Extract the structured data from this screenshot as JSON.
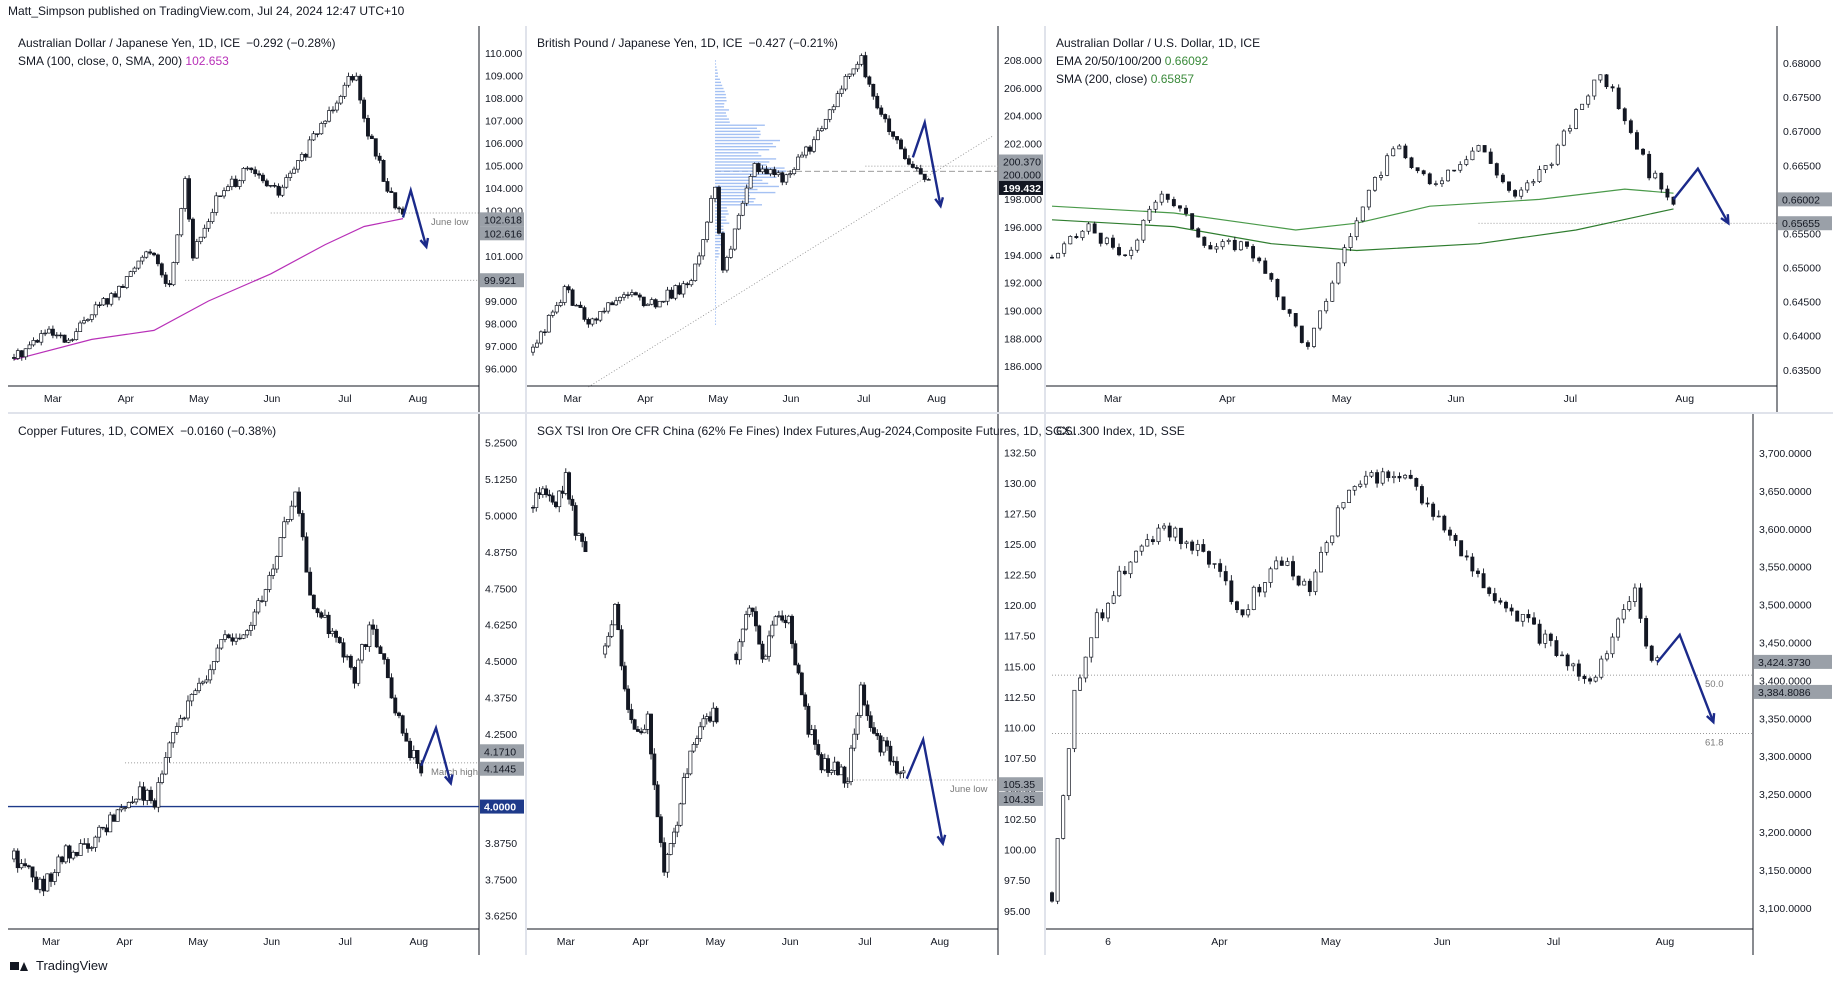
{
  "header": {
    "publisher": "Matt_Simpson published on TradingView.com, Jul 24, 2024 12:47 UTC+10"
  },
  "footer": {
    "brand": "TradingView"
  },
  "colors": {
    "up_down": "#131722",
    "arrow": "#1b2a8a",
    "sma_magenta": "#b830b8",
    "ema_green": "#4a9a4a",
    "level_line": "#1e3a8a",
    "hline": "#7a7a7a"
  },
  "chart_data": [
    {
      "type": "candlestick",
      "title": "Australian Dollar / Japanese Yen, 1D, ICE",
      "change": "−0.292 (−0.28%)",
      "indicator": "SMA (100, close, 0, SMA, 200)",
      "indicator_value": "102.653",
      "ylim": [
        95.5,
        110.3
      ],
      "yticks": [
        "110.000",
        "109.000",
        "108.000",
        "107.000",
        "106.000",
        "105.000",
        "104.000",
        "103.000",
        "102.000",
        "101.000",
        "100.000",
        "99.000",
        "98.000",
        "97.000",
        "96.000"
      ],
      "xticks": [
        "Mar",
        "Apr",
        "May",
        "Jun",
        "Jul",
        "Aug"
      ],
      "path": [
        [
          0,
          96.5
        ],
        [
          8,
          97.6
        ],
        [
          14,
          97.1
        ],
        [
          20,
          98.6
        ],
        [
          27,
          99.4
        ],
        [
          34,
          101.4
        ],
        [
          40,
          99.6
        ],
        [
          44,
          104.5
        ],
        [
          46,
          101.0
        ],
        [
          52,
          103.5
        ],
        [
          60,
          104.8
        ],
        [
          68,
          103.8
        ],
        [
          75,
          105.6
        ],
        [
          86,
          108.9
        ],
        [
          88,
          109.2
        ],
        [
          90,
          107.0
        ],
        [
          96,
          104.0
        ],
        [
          100,
          102.7
        ]
      ],
      "total_days": 118,
      "sma": [
        [
          0,
          96.4
        ],
        [
          20,
          97.3
        ],
        [
          36,
          97.7
        ],
        [
          50,
          99.0
        ],
        [
          66,
          100.2
        ],
        [
          80,
          101.5
        ],
        [
          90,
          102.3
        ],
        [
          100,
          102.65
        ]
      ],
      "sma_color": "#b830b8",
      "levels": [
        {
          "value": 102.9,
          "from": 66,
          "label": "June low"
        },
        {
          "value": 99.921,
          "from": 44
        }
      ],
      "price_labels": [
        {
          "value": "102.618",
          "y": 102.618
        },
        {
          "value": "102.616",
          "y": 102.0
        },
        {
          "value": "99.921",
          "y": 99.921
        }
      ],
      "arrow": {
        "start": [
          100,
          102.7
        ],
        "peak": [
          102,
          103.9
        ],
        "end": [
          106,
          101.4
        ]
      }
    },
    {
      "type": "candlestick",
      "title": "British Pound / Japanese Yen, 1D, ICE",
      "change": "−0.427 (−0.21%)",
      "ylim": [
        185.0,
        209.0
      ],
      "yticks": [
        "208.000",
        "206.000",
        "204.000",
        "202.000",
        "200.000",
        "198.000",
        "196.000",
        "194.000",
        "192.000",
        "190.000",
        "188.000",
        "186.000"
      ],
      "xticks": [
        "Mar",
        "Apr",
        "May",
        "Jun",
        "Jul",
        "Aug"
      ],
      "path": [
        [
          0,
          187.0
        ],
        [
          8,
          191.5
        ],
        [
          14,
          189.0
        ],
        [
          22,
          191.2
        ],
        [
          30,
          190.5
        ],
        [
          40,
          192.0
        ],
        [
          46,
          199.0
        ],
        [
          48,
          192.5
        ],
        [
          56,
          200.5
        ],
        [
          64,
          199.5
        ],
        [
          72,
          202.5
        ],
        [
          80,
          207.0
        ],
        [
          83,
          208.0
        ],
        [
          88,
          204.0
        ],
        [
          95,
          200.3
        ],
        [
          100,
          199.4
        ]
      ],
      "total_days": 116,
      "levels": [
        {
          "value": 200.37,
          "from": 84,
          "label": ""
        },
        {
          "value": 200.0,
          "from": 46,
          "dashed": true
        }
      ],
      "trendline": [
        [
          14,
          184.5
        ],
        [
          116,
          202.5
        ]
      ],
      "price_labels": [
        {
          "value": "200.370",
          "y": 200.7
        },
        {
          "value": "200.000",
          "y": 199.75
        },
        {
          "value": "199.432",
          "y": 198.8,
          "dark": true
        }
      ],
      "arrow": {
        "start": [
          96,
          201.0
        ],
        "peak": [
          99,
          203.5
        ],
        "end": [
          103,
          197.5
        ]
      }
    },
    {
      "type": "candlestick",
      "title": "Australian Dollar / U.S. Dollar, 1D, ICE",
      "change": "",
      "indicator": "EMA 20/50/100/200",
      "indicator_value": "0.66092",
      "indicator2": "SMA (200, close)",
      "indicator2_value": "0.65857",
      "ylim": [
        0.6335,
        0.6825
      ],
      "yticks": [
        "0.68000",
        "0.67500",
        "0.67000",
        "0.66500",
        "0.66000",
        "0.65500",
        "0.65000",
        "0.64500",
        "0.64000",
        "0.63500"
      ],
      "xticks": [
        "Mar",
        "Apr",
        "May",
        "Jun",
        "Jul",
        "Aug"
      ],
      "path": [
        [
          0,
          0.6515
        ],
        [
          6,
          0.656
        ],
        [
          12,
          0.651
        ],
        [
          18,
          0.6615
        ],
        [
          26,
          0.653
        ],
        [
          32,
          0.6535
        ],
        [
          38,
          0.6445
        ],
        [
          42,
          0.638
        ],
        [
          48,
          0.653
        ],
        [
          56,
          0.668
        ],
        [
          62,
          0.662
        ],
        [
          70,
          0.668
        ],
        [
          76,
          0.66
        ],
        [
          82,
          0.666
        ],
        [
          90,
          0.679
        ],
        [
          94,
          0.672
        ],
        [
          98,
          0.664
        ],
        [
          102,
          0.66
        ]
      ],
      "total_days": 118,
      "ema": [
        [
          0,
          0.659
        ],
        [
          20,
          0.658
        ],
        [
          40,
          0.6555
        ],
        [
          50,
          0.6565
        ],
        [
          62,
          0.659
        ],
        [
          80,
          0.66
        ],
        [
          94,
          0.6615
        ],
        [
          102,
          0.6609
        ]
      ],
      "sma200": [
        [
          0,
          0.657
        ],
        [
          20,
          0.656
        ],
        [
          36,
          0.6535
        ],
        [
          50,
          0.6525
        ],
        [
          70,
          0.6535
        ],
        [
          86,
          0.6555
        ],
        [
          102,
          0.6586
        ]
      ],
      "ema_color": "#4a9a4a",
      "levels": [
        {
          "value": 0.6565,
          "from": 70,
          "label": ""
        }
      ],
      "price_labels": [
        {
          "value": "0.66002",
          "y": 0.66
        },
        {
          "value": "0.65655",
          "y": 0.6565
        }
      ],
      "arrow": {
        "start": [
          102,
          0.66
        ],
        "peak": [
          106,
          0.6645
        ],
        "end": [
          111,
          0.6565
        ]
      }
    },
    {
      "type": "candlestick",
      "title": "Copper Futures, 1D, COMEX",
      "change": "−0.0160 (−0.38%)",
      "ylim": [
        3.6,
        5.28
      ],
      "yticks": [
        "5.2500",
        "5.1250",
        "5.0000",
        "4.8750",
        "4.7500",
        "4.6250",
        "4.5000",
        "4.3750",
        "4.2500",
        "4.1250",
        "4.0000",
        "3.8750",
        "3.7500",
        "3.6250"
      ],
      "xticks": [
        "Mar",
        "Apr",
        "May",
        "Jun",
        "Jul",
        "Aug"
      ],
      "path": [
        [
          0,
          3.82
        ],
        [
          8,
          3.72
        ],
        [
          14,
          3.84
        ],
        [
          20,
          3.86
        ],
        [
          28,
          3.98
        ],
        [
          34,
          4.06
        ],
        [
          38,
          4.0
        ],
        [
          42,
          4.22
        ],
        [
          48,
          4.36
        ],
        [
          56,
          4.56
        ],
        [
          62,
          4.58
        ],
        [
          70,
          4.8
        ],
        [
          76,
          5.1
        ],
        [
          80,
          4.7
        ],
        [
          86,
          4.6
        ],
        [
          92,
          4.45
        ],
        [
          96,
          4.62
        ],
        [
          100,
          4.48
        ],
        [
          106,
          4.2
        ],
        [
          110,
          4.14
        ]
      ],
      "total_days": 124,
      "levels": [
        {
          "value": 4.15,
          "from": 30,
          "label": "March high"
        },
        {
          "value": 4.0,
          "from": 0,
          "solid": true,
          "label_value": "4.0000"
        }
      ],
      "price_labels": [
        {
          "value": "4.1710",
          "y": 4.19
        },
        {
          "value": "4.1445",
          "y": 4.13
        },
        {
          "value": "4.0000",
          "y": 4.0,
          "blue": true
        }
      ],
      "arrow": {
        "start": [
          110,
          4.14
        ],
        "peak": [
          114,
          4.27
        ],
        "end": [
          118,
          4.08
        ]
      }
    },
    {
      "type": "candlestick",
      "title": "SGX TSI Iron Ore CFR China (62% Fe Fines) Index Futures,Aug-2024,Composite Futures, 1D, SGX...",
      "change": "",
      "ylim": [
        94.0,
        134.0
      ],
      "yticks": [
        "132.50",
        "130.00",
        "127.50",
        "125.00",
        "122.50",
        "120.00",
        "117.50",
        "115.00",
        "112.50",
        "110.00",
        "107.50",
        "105.00",
        "102.50",
        "100.00",
        "97.50",
        "95.00"
      ],
      "xticks": [
        "Mar",
        "Apr",
        "May",
        "Jun",
        "Jul",
        "Aug"
      ],
      "segments": [
        {
          "path": [
            [
              0,
              128.0
            ],
            [
              3,
              129.5
            ],
            [
              7,
              128.5
            ],
            [
              10,
              130.5
            ],
            [
              13,
              126.0
            ],
            [
              16,
              125.0
            ]
          ]
        },
        {
          "path": [
            [
              22,
              116.0
            ],
            [
              25,
              120.0
            ],
            [
              28,
              113.0
            ],
            [
              32,
              109.0
            ],
            [
              35,
              111.0
            ],
            [
              40,
              98.0
            ],
            [
              43,
              101.0
            ],
            [
              48,
              108.0
            ],
            [
              52,
              111.0
            ],
            [
              56,
              111.0
            ]
          ]
        },
        {
          "path": [
            [
              62,
              116.0
            ],
            [
              66,
              120.0
            ],
            [
              70,
              115.5
            ],
            [
              74,
              119.0
            ],
            [
              78,
              118.5
            ],
            [
              84,
              110.0
            ],
            [
              88,
              107.0
            ],
            [
              96,
              106.0
            ],
            [
              100,
              113.5
            ],
            [
              104,
              109.5
            ],
            [
              110,
              107.0
            ],
            [
              113,
              106.0
            ]
          ]
        }
      ],
      "total_days": 140,
      "levels": [
        {
          "value": 105.7,
          "from": 96,
          "label": "June low"
        }
      ],
      "price_labels": [
        {
          "value": "105.35",
          "y": 105.35
        },
        {
          "value": "104.35",
          "y": 104.15
        }
      ],
      "arrow": {
        "start": [
          114,
          105.8
        ],
        "peak": [
          119,
          109.0
        ],
        "end": [
          125,
          100.5
        ]
      }
    },
    {
      "type": "candlestick",
      "title": "CSI 300 Index, 1D, SSE",
      "change": "",
      "ylim": [
        3080,
        3725
      ],
      "yticks": [
        "3,700.0000",
        "3,650.0000",
        "3,600.0000",
        "3,550.0000",
        "3,500.0000",
        "3,450.0000",
        "3,400.0000",
        "3,350.0000",
        "3,300.0000",
        "3,250.0000",
        "3,200.0000",
        "3,150.0000",
        "3,100.0000"
      ],
      "xticks": [
        "6",
        "Apr",
        "May",
        "Jun",
        "Jul",
        "Aug"
      ],
      "path": [
        [
          0,
          3120
        ],
        [
          4,
          3380
        ],
        [
          8,
          3480
        ],
        [
          14,
          3560
        ],
        [
          20,
          3600
        ],
        [
          28,
          3560
        ],
        [
          34,
          3490
        ],
        [
          40,
          3560
        ],
        [
          46,
          3520
        ],
        [
          52,
          3640
        ],
        [
          58,
          3670
        ],
        [
          64,
          3660
        ],
        [
          70,
          3600
        ],
        [
          76,
          3530
        ],
        [
          84,
          3480
        ],
        [
          90,
          3440
        ],
        [
          96,
          3400
        ],
        [
          100,
          3460
        ],
        [
          104,
          3520
        ],
        [
          106,
          3445
        ],
        [
          108,
          3424
        ]
      ],
      "total_days": 124,
      "levels": [
        {
          "value": 3407,
          "from": 0,
          "label": "50.0"
        },
        {
          "value": 3330,
          "from": 0,
          "label": "61.8"
        }
      ],
      "price_labels": [
        {
          "value": "3,424.3730",
          "y": 3424.4
        },
        {
          "value": "3,384.8086",
          "y": 3384.8
        }
      ],
      "arrow": {
        "start": [
          108,
          3424
        ],
        "peak": [
          112,
          3460
        ],
        "end": [
          118,
          3345
        ]
      }
    }
  ]
}
